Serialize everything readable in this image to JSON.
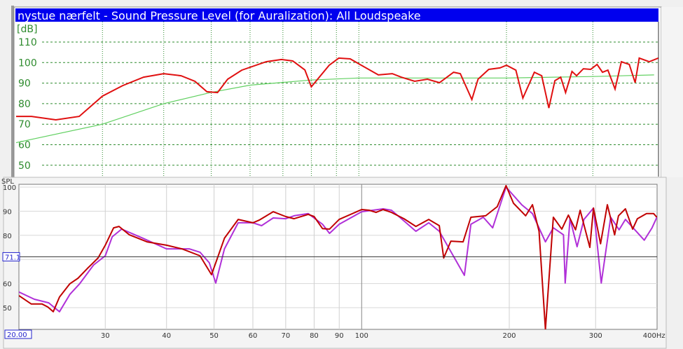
{
  "chart_data": [
    {
      "type": "line",
      "title": "nystue nærfelt - Sound Pressure Level (for Auralization):  All Loudspeake",
      "ylabel": "[dB]",
      "x_scale": "log",
      "xlim": [
        20,
        400
      ],
      "ylim": [
        45,
        115
      ],
      "yticks": [
        "110",
        "100",
        "90",
        "80",
        "70",
        "60",
        "50"
      ],
      "x_gridlines": [
        30,
        40,
        50,
        60,
        70,
        80,
        90,
        100,
        200,
        300
      ],
      "grid": true,
      "colors": {
        "title_bg": "#0000ee",
        "grid": "#2e8b2e"
      },
      "series": [
        {
          "color": "#e01010",
          "x": [
            20,
            21.5,
            24.1,
            26.9,
            30,
            33,
            36.4,
            40,
            43.4,
            46.3,
            49,
            51.5,
            54,
            57.7,
            64.7,
            69.5,
            73.3,
            77.6,
            80,
            87,
            91,
            96,
            100,
            109.6,
            117,
            122,
            130,
            138,
            146,
            156,
            161,
            170,
            175,
            184,
            194,
            200,
            209,
            216,
            228,
            236,
            244,
            251,
            258,
            264,
            272,
            278,
            287,
            297,
            306,
            314,
            322,
            333,
            343,
            356,
            366,
            373,
            391,
            408
          ],
          "y": [
            73.8,
            73.8,
            72.1,
            73.8,
            83.7,
            88.8,
            92.9,
            94.6,
            93.6,
            90.9,
            85.8,
            85.4,
            91.9,
            96.3,
            100.4,
            101.5,
            100.8,
            96.4,
            88.2,
            98.7,
            102.2,
            101.8,
            99.4,
            94,
            94.6,
            92.9,
            90.9,
            91.9,
            90.2,
            95.3,
            94.6,
            82,
            91.9,
            96.7,
            97.4,
            98.7,
            96.3,
            82.7,
            95.3,
            93.6,
            77.9,
            91.2,
            92.9,
            85.4,
            95.7,
            93.6,
            97,
            96.7,
            99.1,
            95.3,
            96.3,
            87.1,
            100.4,
            99.1,
            90.2,
            102.2,
            100.4,
            102.2
          ]
        },
        {
          "color": "#60d060",
          "x": [
            20,
            30,
            40,
            50,
            60,
            80,
            100,
            200,
            300,
            400
          ],
          "y": [
            61,
            70,
            80,
            85.5,
            89,
            91.5,
            92.5,
            92.5,
            93.2,
            94
          ]
        }
      ]
    },
    {
      "type": "line",
      "ylabel": "SPL",
      "x_scale": "log",
      "xlim": [
        20,
        400
      ],
      "ylim": [
        41,
        101
      ],
      "xticks": [
        "30",
        "40",
        "50",
        "60",
        "70",
        "80",
        "90",
        "100",
        "200",
        "300",
        "400Hz"
      ],
      "xtick_values": [
        30,
        40,
        50,
        60,
        70,
        80,
        90,
        100,
        200,
        300,
        400
      ],
      "yticks": [
        "100",
        "90",
        "80",
        "60",
        "50"
      ],
      "ytick_values": [
        100,
        90,
        80,
        60,
        50
      ],
      "grid": true,
      "markers": {
        "y_cursor": "71.1",
        "x_start": "20.00"
      },
      "y_cursor_value": 71.1,
      "series": [
        {
          "color": "#c00000",
          "x": [
            20,
            21.2,
            22.3,
            22.9,
            23.5,
            24.2,
            25.4,
            26.4,
            27.6,
            29,
            30,
            31.2,
            32,
            33.6,
            36.5,
            40,
            43,
            46.8,
            49.4,
            50.4,
            52.5,
            56,
            60,
            61.8,
            66,
            70,
            72.8,
            77.8,
            80,
            83.2,
            86,
            90,
            100,
            103.6,
            107,
            110.6,
            115,
            122,
            129,
            137,
            144,
            147,
            152,
            161,
            167,
            179,
            189,
            197,
            204,
            216,
            223,
            230,
            237,
            246,
            256,
            264,
            273,
            279,
            292,
            297,
            307,
            317,
            328,
            334,
            345,
            357,
            365,
            381,
            394,
            400
          ],
          "y": [
            55,
            51.5,
            51.5,
            50.3,
            48.3,
            54.4,
            59.9,
            62.2,
            66.3,
            70.6,
            75.9,
            83.1,
            83.7,
            80.2,
            77.3,
            75.9,
            74.4,
            71.5,
            63.7,
            68.6,
            78.8,
            86.6,
            85.2,
            86.3,
            89.8,
            87.8,
            86.9,
            88.7,
            87.8,
            82.8,
            82.6,
            86.6,
            90.7,
            90.4,
            89.5,
            90.7,
            89.5,
            86.9,
            83.7,
            86.6,
            84,
            70.6,
            77.6,
            77.3,
            87.5,
            88.1,
            91.9,
            100.6,
            93.3,
            88.1,
            92.7,
            81.7,
            41,
            87.5,
            82.6,
            88.4,
            82.3,
            90.4,
            75,
            91.3,
            76.5,
            92.7,
            80.2,
            88.1,
            91,
            82.6,
            86.9,
            89,
            89,
            87.5
          ]
        },
        {
          "color": "#b030d8",
          "x": [
            20,
            21.5,
            23,
            24.2,
            25.4,
            26.6,
            28.4,
            30,
            31,
            32.4,
            35.8,
            40,
            44.5,
            46.8,
            48.9,
            50.4,
            52.5,
            56,
            60,
            62.5,
            66,
            70,
            72.8,
            77.8,
            83.2,
            86,
            90,
            100,
            110.6,
            115,
            122,
            129,
            137,
            144,
            162,
            167,
            177,
            185,
            197,
            212,
            223,
            237,
            246,
            258,
            260,
            266,
            275,
            284,
            297,
            308,
            322,
            335,
            345,
            377,
            391,
            400
          ],
          "y": [
            56.5,
            53.5,
            52,
            48.3,
            55.5,
            59.9,
            67.7,
            71.5,
            79.4,
            82.6,
            78.8,
            74.4,
            74.4,
            73,
            68.6,
            60.2,
            74.4,
            85.2,
            85.2,
            84,
            87.2,
            86.9,
            88.1,
            89,
            84.6,
            80.8,
            84.6,
            89.8,
            91,
            90.4,
            86,
            81.7,
            85.2,
            81.7,
            63.4,
            84.6,
            87.5,
            83.1,
            100,
            92.7,
            89,
            77.3,
            83.1,
            80.2,
            60.2,
            86.9,
            75.3,
            86.6,
            91.3,
            60.2,
            87.5,
            82.3,
            86.6,
            78,
            83.1,
            87.5
          ]
        }
      ]
    }
  ]
}
